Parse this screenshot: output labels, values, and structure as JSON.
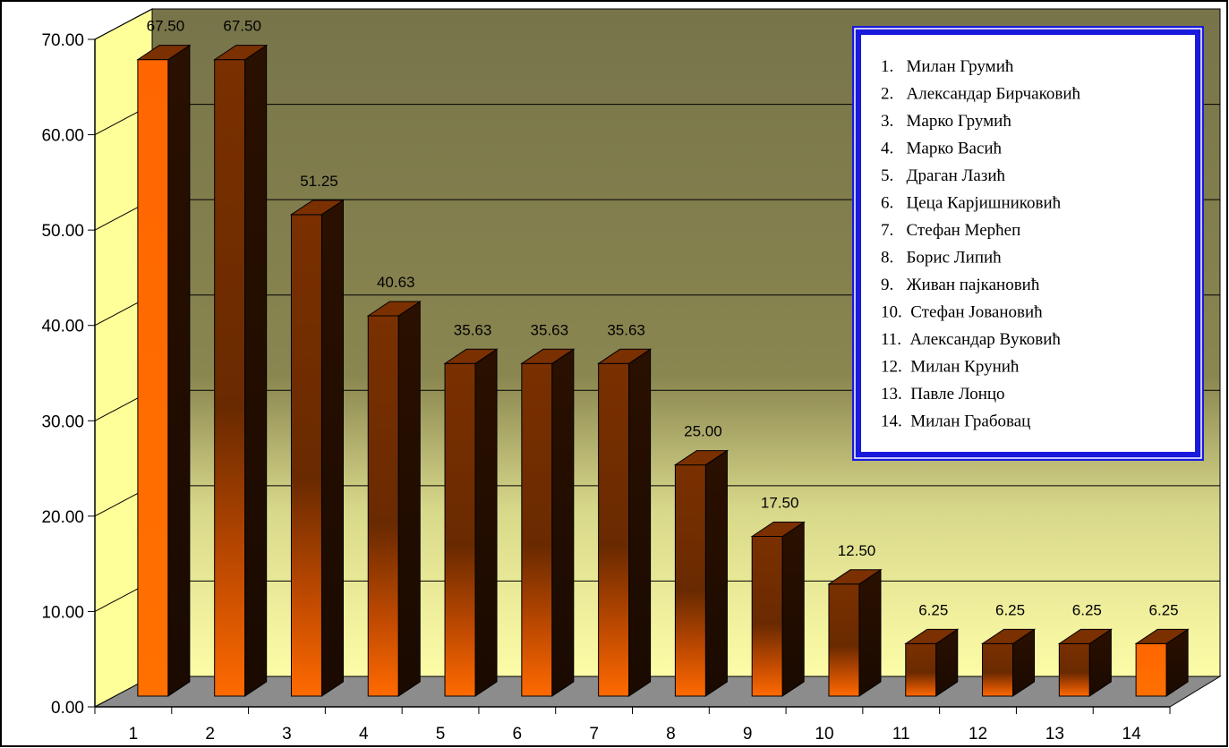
{
  "chart_data": {
    "type": "bar",
    "title": "",
    "xlabel": "",
    "ylabel": "",
    "ylim": [
      0,
      70
    ],
    "y_ticks": [
      "0.00",
      "10.00",
      "20.00",
      "30.00",
      "40.00",
      "50.00",
      "60.00",
      "70.00"
    ],
    "grid": true,
    "three_d": true,
    "legend_position": "top-right",
    "categories": [
      "1",
      "2",
      "3",
      "4",
      "5",
      "6",
      "7",
      "8",
      "9",
      "10",
      "11",
      "12",
      "13",
      "14"
    ],
    "values": [
      67.5,
      67.5,
      51.25,
      40.63,
      35.63,
      35.63,
      35.63,
      25.0,
      17.5,
      12.5,
      6.25,
      6.25,
      6.25,
      6.25
    ],
    "value_labels": [
      "67.50",
      "67.50",
      "51.25",
      "40.63",
      "35.63",
      "35.63",
      "35.63",
      "25.00",
      "17.50",
      "12.50",
      "6.25",
      "6.25",
      "6.25",
      "6.25"
    ],
    "legend_entries": [
      "1.   Милан Грумић",
      "2.   Александар Бирчаковић",
      "3.   Марко Грумић",
      "4.   Марко Васић",
      "5.   Драган Лазић",
      "6.   Цеца Карјишниковић",
      "7.   Стефан Мерћеп",
      "8.   Борис Липић",
      "9.   Живан пајкановић",
      "10.  Стефан Јовановић",
      "11.  Александар Вуковић",
      "12.  Милан Крунић",
      "13.  Павле Лонцо",
      "14.  Милан Грабовац"
    ],
    "colors": {
      "bar_top": "#7a3000",
      "bar_side": "#2a1000",
      "bar_glow": "#ff6a00",
      "wall_top": "#7a7748",
      "wall_bottom": "#fdfda8",
      "side_wall": "#ffff99",
      "floor": "#8c8c8c",
      "legend_border": "#1a1adc"
    }
  }
}
